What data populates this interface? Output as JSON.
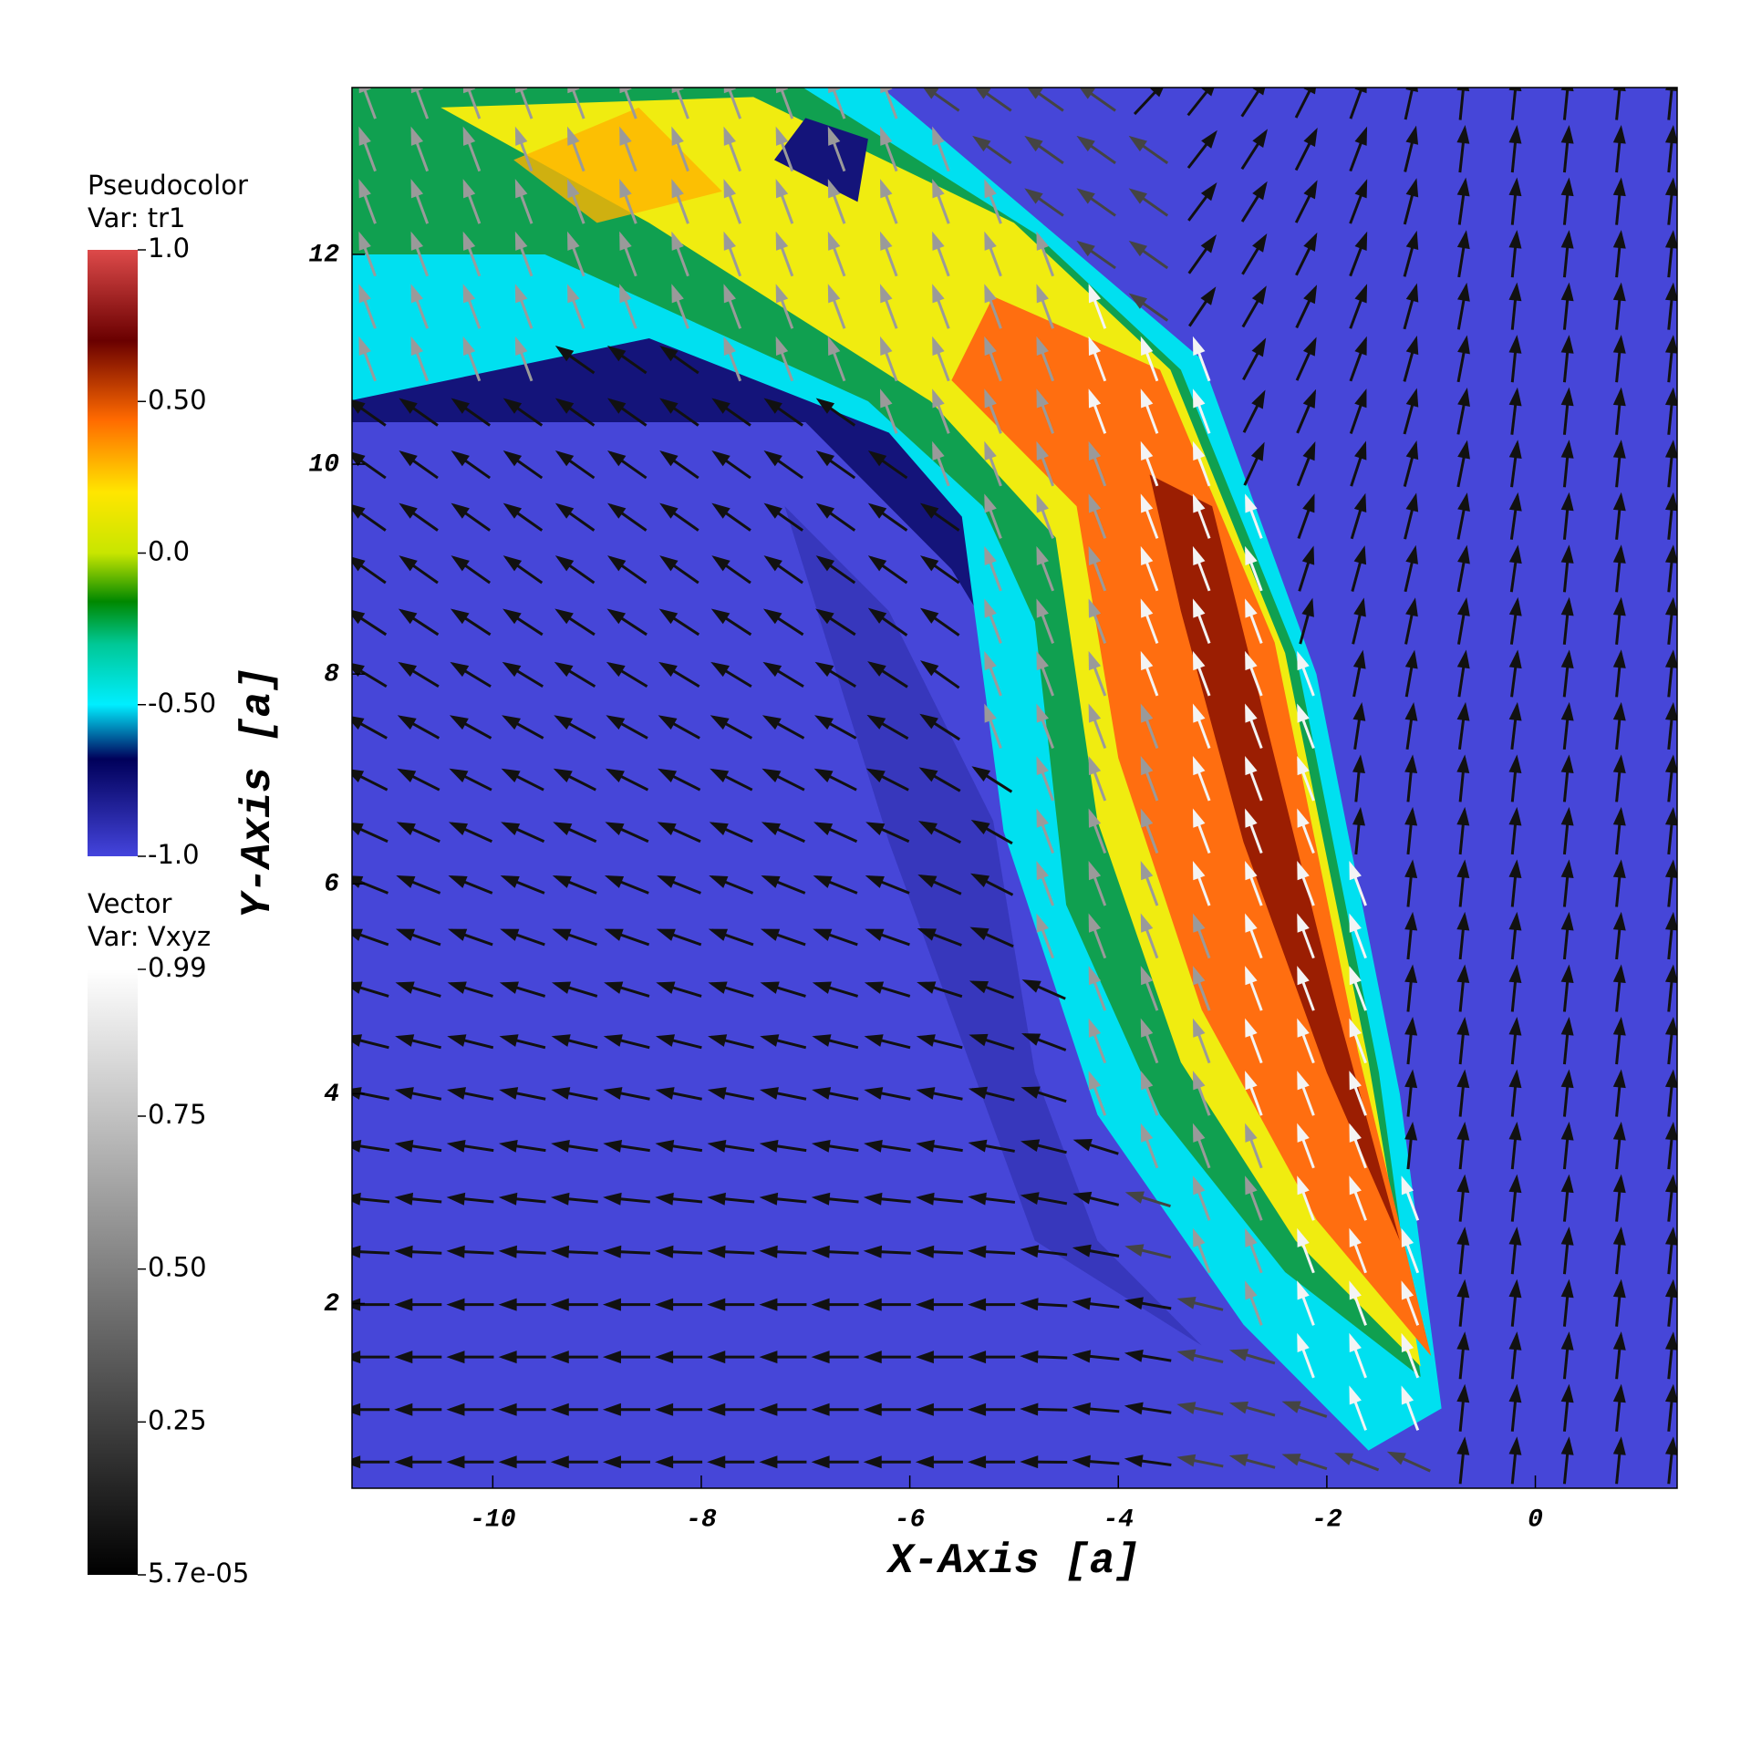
{
  "chart_data": {
    "type": "pseudocolor-vector",
    "xlabel": "X-Axis [a]",
    "ylabel": "Y-Axis [a]",
    "xlim": [
      -11.35,
      1.36
    ],
    "ylim": [
      0.24,
      13.59
    ],
    "xticks": [
      -10,
      -8,
      -6,
      -4,
      -2,
      0
    ],
    "yticks": [
      2,
      4,
      6,
      8,
      10,
      12
    ],
    "pseudocolor_legend": {
      "title": "Pseudocolor",
      "variable": "Var: tr1",
      "range": [
        -1,
        1
      ],
      "ticks": [
        {
          "value": 1,
          "label": "1.0"
        },
        {
          "value": 0.5,
          "label": "0.50"
        },
        {
          "value": 0,
          "label": "0.0"
        },
        {
          "value": -0.5,
          "label": "-0.50"
        },
        {
          "value": -1,
          "label": "-1.0"
        }
      ]
    },
    "vector_legend": {
      "title": "Vector",
      "variable": "Var: Vxyz",
      "range": [
        5.7e-05,
        0.99
      ],
      "ticks": [
        0.99,
        0.75,
        {
          "value": 0.5,
          "label": "0.50"
        },
        0.25,
        {
          "value": 5.7e-05,
          "label": "5.7e-05"
        }
      ]
    }
  }
}
